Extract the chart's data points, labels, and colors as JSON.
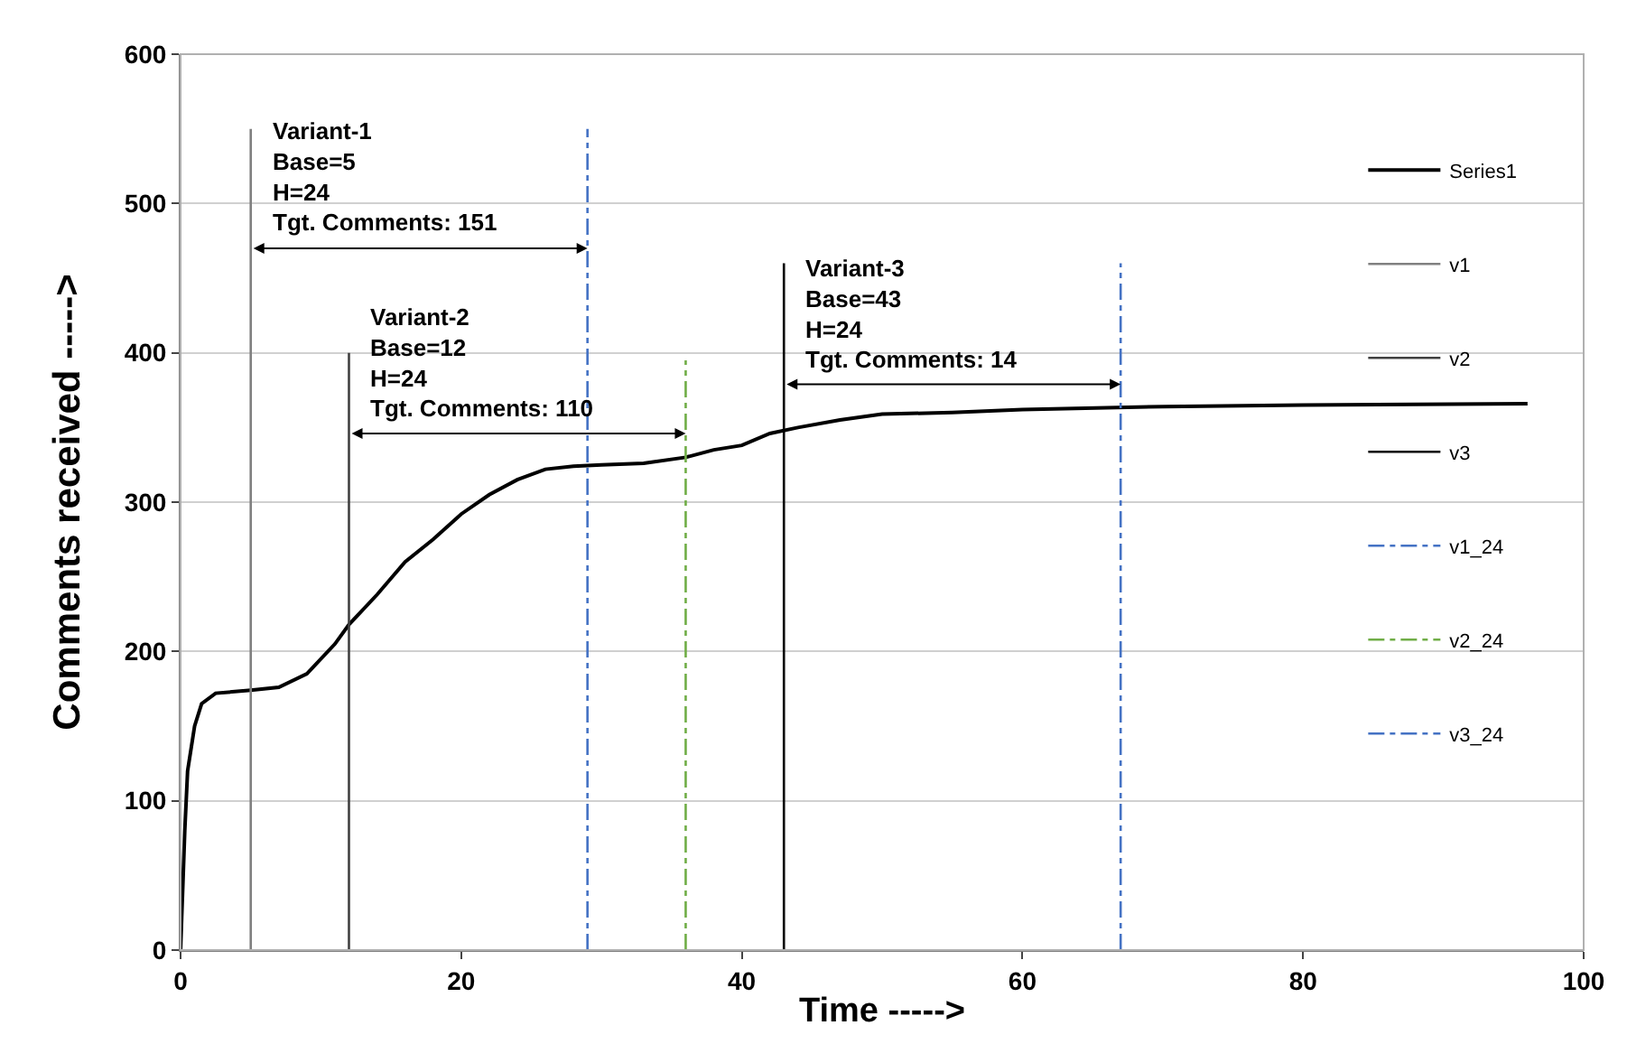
{
  "chart_data": {
    "type": "line",
    "xlabel": "Time ----->",
    "ylabel": "Comments received ----->",
    "xlim": [
      0,
      100
    ],
    "xticks": [
      0,
      20,
      40,
      60,
      80,
      100
    ],
    "ylim": [
      0,
      600
    ],
    "yticks": [
      0,
      100,
      200,
      300,
      400,
      500,
      600
    ],
    "grid": "y",
    "legend": "right",
    "marker": "none",
    "series": [
      {
        "name": "Series1",
        "color": "#000000",
        "line_style": "solid",
        "x": [
          0,
          0.3,
          0.5,
          1,
          1.5,
          2.5,
          5,
          7,
          9,
          11,
          12,
          14,
          16,
          18,
          20,
          22,
          24,
          26,
          28,
          30,
          33,
          36,
          38,
          40,
          42,
          44,
          47,
          50,
          55,
          60,
          70,
          80,
          96
        ],
        "values": [
          0,
          80,
          120,
          150,
          165,
          172,
          174,
          176,
          185,
          205,
          218,
          238,
          260,
          275,
          292,
          305,
          315,
          322,
          324,
          325,
          326,
          330,
          335,
          338,
          346,
          350,
          355,
          359,
          360,
          362,
          364,
          365,
          366
        ]
      },
      {
        "name": "v1",
        "color": "#808080",
        "line_style": "solid",
        "x": [
          5,
          5
        ],
        "values": [
          0,
          550
        ]
      },
      {
        "name": "v2",
        "color": "#404040",
        "line_style": "solid",
        "x": [
          12,
          12
        ],
        "values": [
          0,
          400
        ]
      },
      {
        "name": "v3",
        "color": "#000000",
        "line_style": "solid",
        "x": [
          43,
          43
        ],
        "values": [
          0,
          460
        ]
      },
      {
        "name": "v1_24",
        "color": "#4472c4",
        "line_style": "dashdot",
        "x": [
          29,
          29
        ],
        "values": [
          0,
          550
        ]
      },
      {
        "name": "v2_24",
        "color": "#70ad47",
        "line_style": "dashdot",
        "x": [
          36,
          36
        ],
        "values": [
          0,
          395
        ]
      },
      {
        "name": "v3_24",
        "color": "#4472c4",
        "line_style": "dashdot",
        "x": [
          67,
          67
        ],
        "values": [
          0,
          460
        ]
      }
    ],
    "annotations": [
      {
        "text": "Variant-1\nBase=5\nH=24\nTgt. Comments: 151",
        "x": 5,
        "y": 470
      },
      {
        "text": "Variant-2\nBase=12\nH=24\nTgt. Comments: 110",
        "x": 12,
        "y": 346
      },
      {
        "text": "Variant-3\nBase=43\nH=24\nTgt. Comments: 14",
        "x": 43,
        "y": 379
      }
    ]
  }
}
